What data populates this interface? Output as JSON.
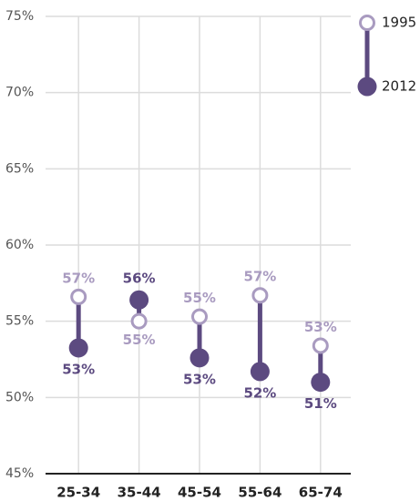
{
  "chart_data": {
    "type": "dumbbell",
    "categories": [
      "25-34",
      "35-44",
      "45-54",
      "55-64",
      "65-74"
    ],
    "series": [
      {
        "name": "1995",
        "color": "#a99bc0",
        "values": [
          56.6,
          55.0,
          55.3,
          56.7,
          53.4
        ],
        "value_labels": [
          "57%",
          "55%",
          "55%",
          "57%",
          "53%"
        ]
      },
      {
        "name": "2012",
        "color": "#5c4a80",
        "values": [
          53.25,
          56.4,
          52.6,
          51.7,
          51.0
        ],
        "value_labels": [
          "53%",
          "56%",
          "53%",
          "52%",
          "51%"
        ]
      }
    ],
    "ylim": [
      45,
      75
    ],
    "yticks": [
      {
        "value": 45,
        "label": "45%"
      },
      {
        "value": 50,
        "label": "50%"
      },
      {
        "value": 55,
        "label": "55%"
      },
      {
        "value": 60,
        "label": "60%"
      },
      {
        "value": 65,
        "label": "65%"
      },
      {
        "value": 70,
        "label": "70%"
      },
      {
        "value": 75,
        "label": "75%"
      }
    ],
    "grid": true,
    "legend": "top-right"
  }
}
